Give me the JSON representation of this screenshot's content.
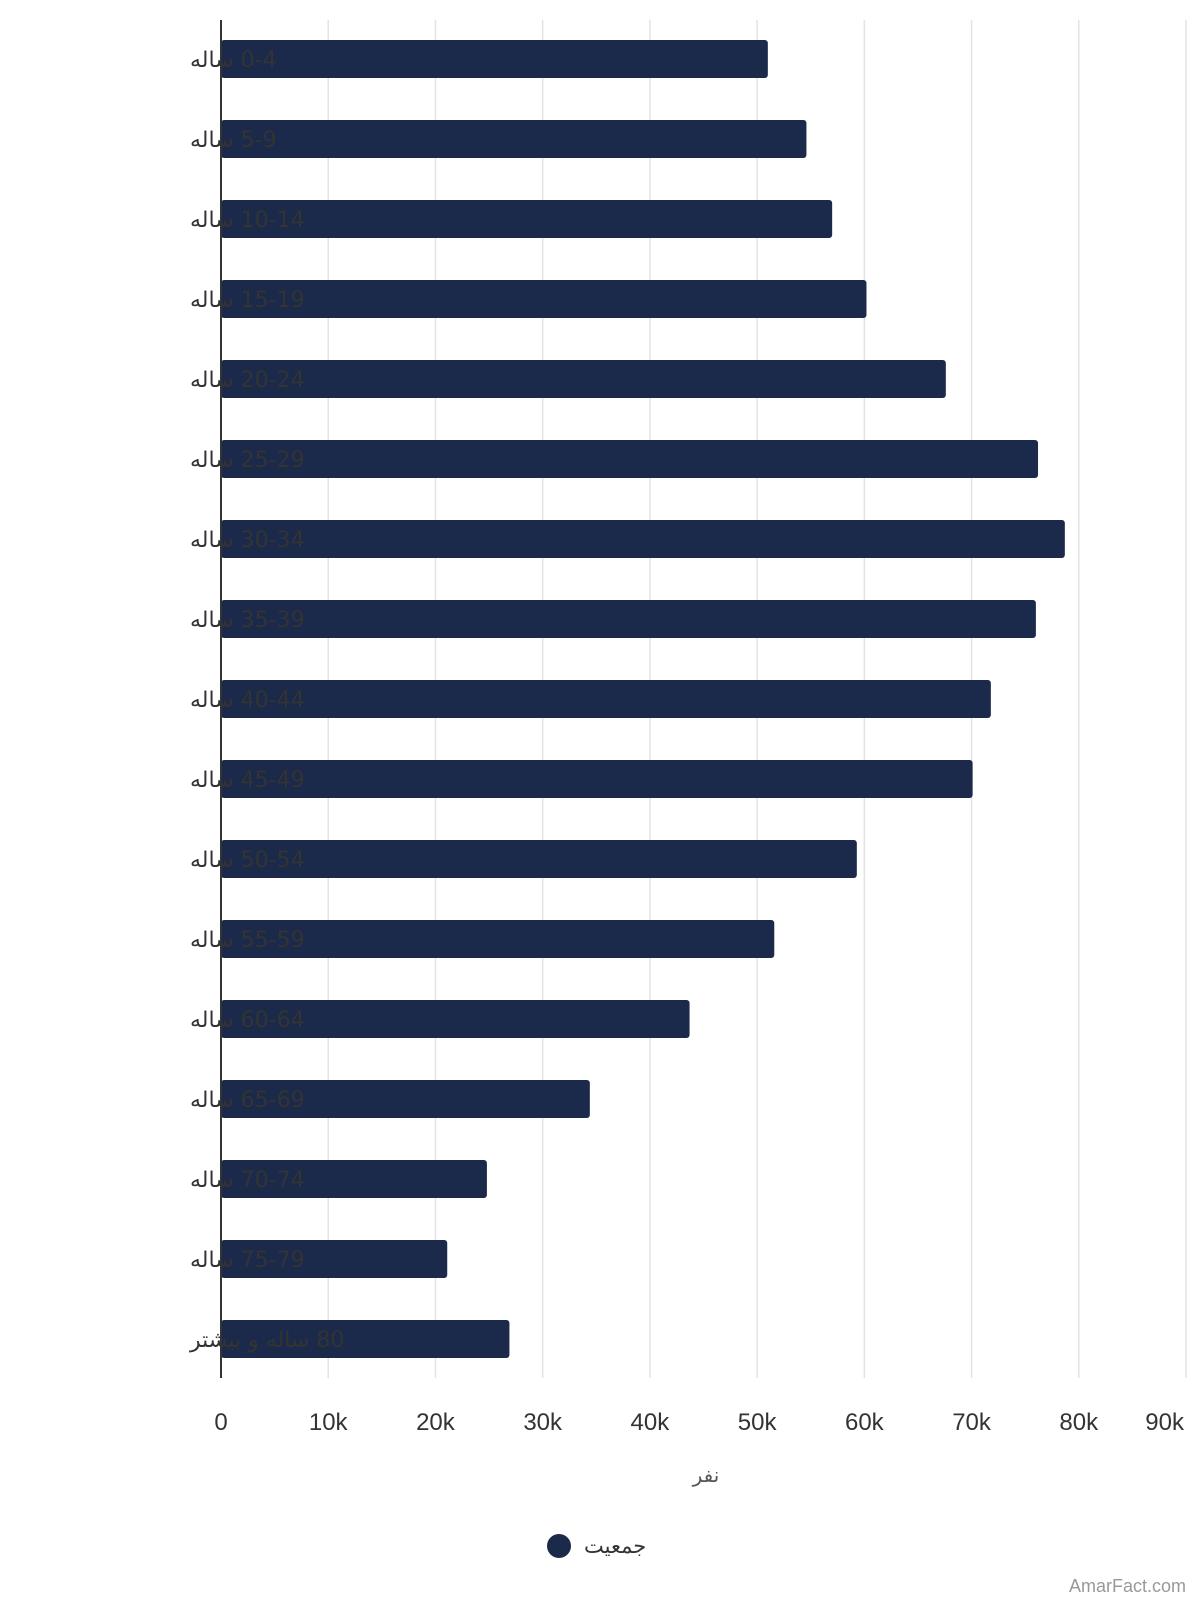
{
  "chart_data": {
    "type": "bar",
    "orientation": "horizontal",
    "categories": [
      "0-4 ساله",
      "5-9 ساله",
      "10-14 ساله",
      "15-19 ساله",
      "20-24 ساله",
      "25-29 ساله",
      "30-34 ساله",
      "35-39 ساله",
      "40-44 ساله",
      "45-49 ساله",
      "50-54 ساله",
      "55-59 ساله",
      "60-64 ساله",
      "65-69 ساله",
      "70-74 ساله",
      "75-79 ساله",
      "80 ساله و بیشتر"
    ],
    "series": [
      {
        "name": "جمعیت",
        "color": "#1b2a4a",
        "values": [
          51000,
          54600,
          57000,
          60200,
          67600,
          76200,
          78700,
          76000,
          71800,
          70100,
          59300,
          51600,
          43700,
          34400,
          24800,
          21100,
          26900
        ]
      }
    ],
    "x_ticks": [
      "0",
      "10k",
      "20k",
      "30k",
      "40k",
      "50k",
      "60k",
      "70k",
      "80k",
      "90k"
    ],
    "xlim": [
      0,
      90000
    ],
    "xlabel": "نفر",
    "grid": true,
    "legend_position": "bottom"
  },
  "watermark": "AmarFact.com"
}
